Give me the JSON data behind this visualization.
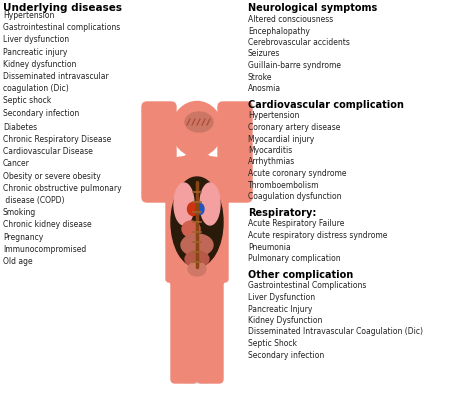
{
  "left_title": "Underlying diseases",
  "left_items_group1": [
    "Hypertension",
    "Gastrointestinal complications",
    "Liver dysfunction",
    "Pancreatic injury",
    "Kidney dysfunction",
    "Disseminated intravascular",
    "coagulation (Dic)",
    "Septic shock",
    "Secondary infection"
  ],
  "left_items_group2": [
    "Diabetes",
    "Chronic Respiratory Disease",
    "Cardiovascular Disease",
    "Cancer",
    "Obesity or severe obesity",
    "Chronic obstructive pulmonary",
    " disease (COPD)",
    "Smoking",
    "Chronic kidney disease",
    "Pregnancy",
    "Immunocompromised",
    "Old age"
  ],
  "right_sections": [
    {
      "title": "Neurological symptoms",
      "items": [
        "Altered consciousness",
        "Encephalopathy",
        "Cerebrovascular accidents",
        "Seizures",
        "Guillain-barre syndrome",
        "Stroke",
        "Anosmia"
      ]
    },
    {
      "title": "Cardiovascular complication",
      "items": [
        "Hypertension",
        "Coronary artery disease",
        "Myocardial injury",
        "Myocarditis",
        "Arrhythmias",
        "Acute coronary syndrome",
        "Thromboembolism",
        "Coagulation dysfunction"
      ]
    },
    {
      "title": "Respiratory:",
      "items": [
        "Acute Respiratory Failure",
        "Acute respiratory distress syndrome",
        "Pneumonia",
        "Pulmonary complication"
      ]
    },
    {
      "title": "Other complication",
      "items": [
        "Gastrointestinal Complications",
        "Liver Dysfunction",
        "Pancreatic Injury",
        "Kidney Dysfunction",
        "Disseminated Intravascular Coagulation (Dic)",
        "Septic Shock",
        "Secondary infection"
      ]
    }
  ],
  "body_color": "#f08878",
  "body_dark": "#e06868",
  "background_color": "#ffffff",
  "title_color": "#000000",
  "text_color": "#222222",
  "organ_dark": "#2a1a0a",
  "lung_color": "#f4a0a0",
  "heart_red": "#cc3311",
  "heart_blue": "#2255bb",
  "brain_color": "#cc7766",
  "stomach_color": "#d06050",
  "intestine_color": "#b05050",
  "spine_color": "#8B4513"
}
